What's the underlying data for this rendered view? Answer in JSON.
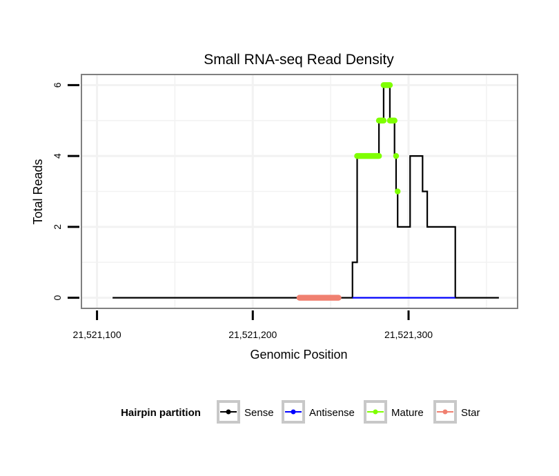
{
  "chart_data": {
    "type": "line",
    "title": "Small RNA-seq Read Density",
    "xlabel": "Genomic Position",
    "ylabel": "Total Reads",
    "xlim": [
      21521090,
      21521370
    ],
    "ylim": [
      -0.3,
      6.3
    ],
    "x_ticks": [
      21521100,
      21521200,
      21521300
    ],
    "x_tick_labels": [
      "21,521,100",
      "21,521,200",
      "21,521,300"
    ],
    "y_ticks": [
      0,
      2,
      4,
      6
    ],
    "y_tick_labels": [
      "0",
      "2",
      "4",
      "6"
    ],
    "grid": true,
    "legend": {
      "title": "Hairpin partition",
      "position": "bottom",
      "entries": [
        {
          "label": "Sense",
          "color": "#000000"
        },
        {
          "label": "Antisense",
          "color": "#0000ff"
        },
        {
          "label": "Mature",
          "color": "#7fff00"
        },
        {
          "label": "Star",
          "color": "#f08070"
        }
      ]
    },
    "series": [
      {
        "name": "Sense",
        "color": "#000000",
        "x": [
          21521110,
          21521264,
          21521264,
          21521267,
          21521267,
          21521281,
          21521281,
          21521284,
          21521284,
          21521288,
          21521288,
          21521291,
          21521291,
          21521292,
          21521292,
          21521293,
          21521293,
          21521294,
          21521294,
          21521301,
          21521301,
          21521306,
          21521306,
          21521309,
          21521309,
          21521312,
          21521312,
          21521330,
          21521330,
          21521358
        ],
        "y": [
          0,
          0,
          1,
          1,
          4,
          4,
          5,
          5,
          6,
          6,
          5,
          5,
          4,
          4,
          3,
          3,
          2,
          2,
          2,
          2,
          4,
          4,
          4,
          4,
          3,
          3,
          2,
          2,
          0,
          0
        ]
      },
      {
        "name": "Antisense",
        "color": "#0000ff",
        "x": [
          21521264,
          21521330
        ],
        "y": [
          0,
          0
        ]
      },
      {
        "name": "Mature",
        "color": "#7fff00",
        "segments": [
          {
            "x": [
              21521267,
              21521281
            ],
            "y": [
              4,
              4
            ]
          },
          {
            "x": [
              21521281,
              21521284
            ],
            "y": [
              5,
              5
            ]
          },
          {
            "x": [
              21521284,
              21521288
            ],
            "y": [
              6,
              6
            ]
          },
          {
            "x": [
              21521288,
              21521291
            ],
            "y": [
              5,
              5
            ]
          },
          {
            "x": [
              21521292,
              21521292
            ],
            "y": [
              4,
              4
            ]
          },
          {
            "x": [
              21521293,
              21521293
            ],
            "y": [
              3,
              3
            ]
          }
        ]
      },
      {
        "name": "Star",
        "color": "#f08070",
        "segments": [
          {
            "x": [
              21521230,
              21521255
            ],
            "y": [
              0,
              0
            ]
          }
        ]
      }
    ]
  }
}
